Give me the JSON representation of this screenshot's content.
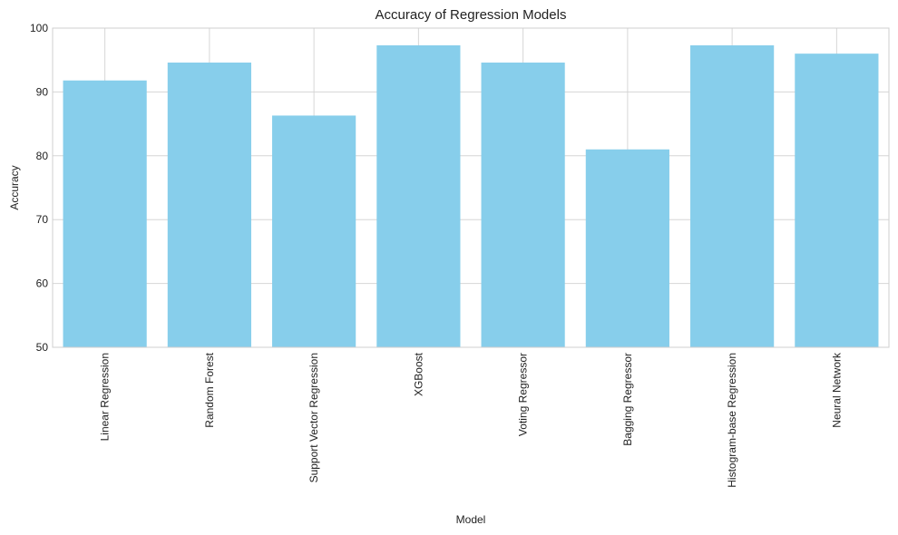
{
  "chart_data": {
    "type": "bar",
    "title": "Accuracy of Regression Models",
    "xlabel": "Model",
    "ylabel": "Accuracy",
    "categories": [
      "Linear Regression",
      "Random Forest",
      "Support Vector Regression",
      "XGBoost",
      "Voting Regressor",
      "Bagging Regressor",
      "Histogram-base Regression",
      "Neural Network"
    ],
    "values": [
      91.8,
      94.6,
      86.3,
      97.3,
      94.6,
      81.0,
      97.3,
      96.0
    ],
    "ylim": [
      50,
      100
    ],
    "yticks": [
      50,
      60,
      70,
      80,
      90,
      100
    ],
    "grid": true,
    "bar_color": "#87CEEB",
    "grid_color": "#d6d6d6",
    "frame_color": "#cfcfcf"
  }
}
